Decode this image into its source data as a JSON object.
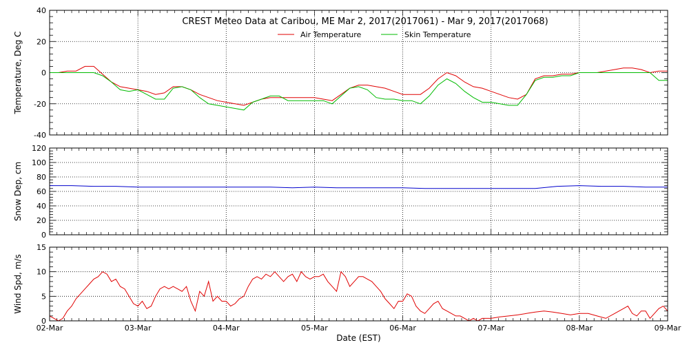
{
  "header": {
    "title": "CREST Meteo Data at Caribou, ME   Mar  2, 2017(2017061) - Mar  9, 2017(2017068)"
  },
  "legend": {
    "air_label": "Air Temperature",
    "skin_label": "Skin Temperature"
  },
  "xaxis": {
    "label": "Date (EST)",
    "ticks": [
      "02-Mar",
      "03-Mar",
      "04-Mar",
      "05-Mar",
      "06-Mar",
      "07-Mar",
      "08-Mar",
      "09-Mar"
    ]
  },
  "colors": {
    "air": "#e00000",
    "skin": "#00bb00",
    "snow": "#0000cc",
    "wind": "#e00000",
    "axis": "#000000",
    "grid": "#000000"
  },
  "chart_data": [
    {
      "type": "line",
      "ylabel": "Temperature, Deg C",
      "ylim": [
        -40,
        40
      ],
      "yticks": [
        -40,
        -20,
        0,
        20,
        40
      ],
      "xlim": [
        0,
        7
      ],
      "grid": true,
      "legend_position": "top-center",
      "series": [
        {
          "name": "Air Temperature",
          "color": "#e00000",
          "x": [
            0,
            0.1,
            0.2,
            0.3,
            0.4,
            0.5,
            0.6,
            0.7,
            0.8,
            0.9,
            1.0,
            1.1,
            1.2,
            1.3,
            1.4,
            1.5,
            1.6,
            1.7,
            1.8,
            1.9,
            2.0,
            2.1,
            2.2,
            2.3,
            2.4,
            2.5,
            2.6,
            2.7,
            2.8,
            2.9,
            3.0,
            3.1,
            3.2,
            3.3,
            3.4,
            3.5,
            3.6,
            3.7,
            3.8,
            3.9,
            4.0,
            4.1,
            4.2,
            4.3,
            4.4,
            4.5,
            4.6,
            4.7,
            4.8,
            4.9,
            5.0,
            5.1,
            5.2,
            5.3,
            5.4,
            5.5,
            5.6,
            5.7,
            5.8,
            5.9,
            6.0,
            6.1,
            6.2,
            6.3,
            6.4,
            6.5,
            6.6,
            6.7,
            6.8,
            6.9,
            7.0
          ],
          "values": [
            0,
            0,
            1,
            1,
            4,
            4,
            -1,
            -6,
            -9,
            -10,
            -11,
            -12,
            -14,
            -13,
            -9,
            -9,
            -11,
            -14,
            -16,
            -18,
            -19,
            -20,
            -21,
            -19,
            -17,
            -16,
            -16,
            -16,
            -16,
            -16,
            -16,
            -17,
            -18,
            -14,
            -10,
            -8,
            -8,
            -9,
            -10,
            -12,
            -14,
            -14,
            -14,
            -10,
            -4,
            0,
            -2,
            -6,
            -9,
            -10,
            -12,
            -14,
            -16,
            -17,
            -14,
            -4,
            -2,
            -2,
            -1,
            -1,
            0,
            0,
            0,
            1,
            2,
            3,
            3,
            2,
            0,
            1,
            1
          ]
        },
        {
          "name": "Skin Temperature",
          "color": "#00bb00",
          "x": [
            0,
            0.1,
            0.2,
            0.3,
            0.4,
            0.5,
            0.6,
            0.7,
            0.8,
            0.9,
            1.0,
            1.1,
            1.2,
            1.3,
            1.4,
            1.5,
            1.6,
            1.7,
            1.8,
            1.9,
            2.0,
            2.1,
            2.2,
            2.3,
            2.4,
            2.5,
            2.6,
            2.7,
            2.8,
            2.9,
            3.0,
            3.1,
            3.2,
            3.3,
            3.4,
            3.5,
            3.6,
            3.7,
            3.8,
            3.9,
            4.0,
            4.1,
            4.2,
            4.3,
            4.4,
            4.5,
            4.6,
            4.7,
            4.8,
            4.9,
            5.0,
            5.1,
            5.2,
            5.3,
            5.4,
            5.5,
            5.6,
            5.7,
            5.8,
            5.9,
            6.0,
            6.1,
            6.2,
            6.3,
            6.4,
            6.5,
            6.6,
            6.7,
            6.8,
            6.9,
            7.0
          ],
          "values": [
            0,
            0,
            0,
            0,
            0,
            0,
            -2,
            -6,
            -11,
            -12,
            -11,
            -14,
            -17,
            -17,
            -10,
            -9,
            -11,
            -16,
            -20,
            -21,
            -22,
            -23,
            -24,
            -19,
            -17,
            -15,
            -15,
            -18,
            -18,
            -18,
            -18,
            -18,
            -20,
            -15,
            -10,
            -9,
            -11,
            -16,
            -17,
            -17,
            -18,
            -18,
            -20,
            -15,
            -8,
            -4,
            -7,
            -12,
            -16,
            -19,
            -19,
            -20,
            -21,
            -21,
            -14,
            -5,
            -3,
            -3,
            -2,
            -2,
            0,
            0,
            0,
            0,
            0,
            0,
            0,
            0,
            0,
            -5,
            -5
          ]
        }
      ]
    },
    {
      "type": "line",
      "ylabel": "Snow Dep, cm",
      "ylim": [
        0,
        120
      ],
      "yticks": [
        0,
        20,
        40,
        60,
        80,
        100,
        120
      ],
      "xlim": [
        0,
        7
      ],
      "grid": true,
      "series": [
        {
          "color": "#0000cc",
          "x": [
            0,
            0.25,
            0.5,
            0.75,
            1.0,
            1.25,
            1.5,
            1.75,
            2.0,
            2.25,
            2.5,
            2.75,
            3.0,
            3.25,
            3.5,
            3.75,
            4.0,
            4.25,
            4.5,
            4.75,
            5.0,
            5.25,
            5.5,
            5.75,
            6.0,
            6.25,
            6.5,
            6.75,
            7.0
          ],
          "values": [
            68,
            68,
            67,
            67,
            66,
            66,
            66,
            66,
            66,
            66,
            66,
            65,
            66,
            65,
            65,
            65,
            65,
            64,
            64,
            64,
            64,
            64,
            64,
            67,
            68,
            67,
            67,
            66,
            66
          ]
        }
      ]
    },
    {
      "type": "line",
      "ylabel": "Wind Spd, m/s",
      "ylim": [
        0,
        15
      ],
      "yticks": [
        0,
        5,
        10,
        15
      ],
      "xlim": [
        0,
        7
      ],
      "grid": true,
      "series": [
        {
          "color": "#e00000",
          "x": [
            0,
            0.05,
            0.1,
            0.15,
            0.2,
            0.25,
            0.3,
            0.35,
            0.4,
            0.45,
            0.5,
            0.55,
            0.6,
            0.65,
            0.7,
            0.75,
            0.8,
            0.85,
            0.9,
            0.95,
            1.0,
            1.05,
            1.1,
            1.15,
            1.2,
            1.25,
            1.3,
            1.35,
            1.4,
            1.45,
            1.5,
            1.55,
            1.6,
            1.65,
            1.7,
            1.75,
            1.8,
            1.85,
            1.9,
            1.95,
            2.0,
            2.05,
            2.1,
            2.15,
            2.2,
            2.25,
            2.3,
            2.35,
            2.4,
            2.45,
            2.5,
            2.55,
            2.6,
            2.65,
            2.7,
            2.75,
            2.8,
            2.85,
            2.9,
            2.95,
            3.0,
            3.05,
            3.1,
            3.15,
            3.2,
            3.25,
            3.3,
            3.35,
            3.4,
            3.45,
            3.5,
            3.55,
            3.6,
            3.65,
            3.7,
            3.75,
            3.8,
            3.85,
            3.9,
            3.95,
            4.0,
            4.05,
            4.1,
            4.15,
            4.2,
            4.25,
            4.3,
            4.35,
            4.4,
            4.45,
            4.5,
            4.55,
            4.6,
            4.65,
            4.7,
            4.75,
            4.8,
            4.85,
            4.9,
            4.95,
            5.0,
            5.1,
            5.2,
            5.3,
            5.4,
            5.5,
            5.6,
            5.7,
            5.8,
            5.9,
            6.0,
            6.1,
            6.2,
            6.3,
            6.4,
            6.5,
            6.55,
            6.6,
            6.65,
            6.7,
            6.75,
            6.8,
            6.85,
            6.9,
            6.95,
            7.0
          ],
          "values": [
            1,
            0.5,
            0,
            0.5,
            2,
            3,
            4.5,
            5.5,
            6.5,
            7.5,
            8.5,
            9,
            10,
            9.5,
            8,
            8.5,
            7,
            6.5,
            5,
            3.5,
            3,
            4,
            2.5,
            3,
            5,
            6.5,
            7,
            6.5,
            7,
            6.5,
            6,
            7,
            4,
            2,
            6,
            5,
            8,
            4,
            5,
            4,
            4,
            3,
            3.5,
            4.5,
            5,
            7,
            8.5,
            9,
            8.5,
            9.5,
            9,
            10,
            9,
            8,
            9,
            9.5,
            8,
            10,
            9,
            8.5,
            9,
            9,
            9.5,
            8,
            7,
            6,
            10,
            9,
            7,
            8,
            9,
            9,
            8.5,
            8,
            7,
            6,
            4.5,
            3.5,
            2.5,
            4,
            4,
            5.5,
            5,
            3,
            2,
            1.5,
            2.5,
            3.5,
            4,
            2.5,
            2,
            1.5,
            1,
            1,
            0.5,
            0,
            0.5,
            0,
            0.5,
            0.5,
            0.5,
            0.8,
            1,
            1.2,
            1.5,
            1.8,
            2,
            1.8,
            1.5,
            1.2,
            1.5,
            1.5,
            1,
            0.5,
            1.5,
            2.5,
            3,
            1.5,
            1,
            2,
            2,
            0.5,
            1.5,
            2.5,
            3,
            2
          ]
        }
      ]
    }
  ]
}
